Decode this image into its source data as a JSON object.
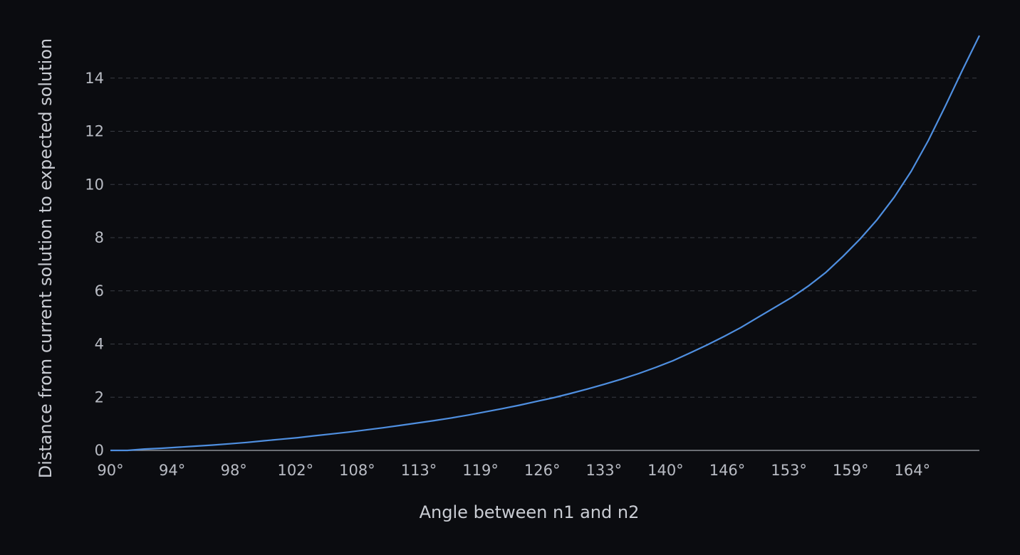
{
  "chart_data": {
    "type": "line",
    "title": "",
    "xlabel": "Angle between n1 and n2",
    "ylabel": "Distance from current solution to expected solution",
    "x_tick_labels": [
      "90°",
      "94°",
      "98°",
      "102°",
      "108°",
      "113°",
      "119°",
      "126°",
      "133°",
      "140°",
      "146°",
      "153°",
      "159°",
      "164°"
    ],
    "y_ticks": [
      0,
      2,
      4,
      6,
      8,
      10,
      12,
      14
    ],
    "ylim": [
      0,
      15.6
    ],
    "grid": true,
    "line_color": "#4f8fe0",
    "series": [
      {
        "points": [
          [
            0,
            0.0
          ],
          [
            1,
            0.0
          ],
          [
            2,
            0.05
          ],
          [
            3,
            0.08
          ],
          [
            4,
            0.12
          ],
          [
            5,
            0.16
          ],
          [
            6,
            0.2
          ],
          [
            7,
            0.25
          ],
          [
            8,
            0.3
          ],
          [
            9,
            0.36
          ],
          [
            10,
            0.42
          ],
          [
            11,
            0.48
          ],
          [
            12,
            0.55
          ],
          [
            13,
            0.62
          ],
          [
            14,
            0.69
          ],
          [
            15,
            0.77
          ],
          [
            16,
            0.85
          ],
          [
            17,
            0.94
          ],
          [
            18,
            1.03
          ],
          [
            19,
            1.12
          ],
          [
            20,
            1.22
          ],
          [
            21,
            1.33
          ],
          [
            22,
            1.45
          ],
          [
            23,
            1.57
          ],
          [
            24,
            1.7
          ],
          [
            25,
            1.84
          ],
          [
            26,
            1.98
          ],
          [
            27,
            2.14
          ],
          [
            28,
            2.31
          ],
          [
            29,
            2.49
          ],
          [
            30,
            2.68
          ],
          [
            31,
            2.89
          ],
          [
            32,
            3.12
          ],
          [
            33,
            3.37
          ],
          [
            34,
            3.66
          ],
          [
            35,
            3.96
          ],
          [
            36,
            4.28
          ],
          [
            37,
            4.62
          ],
          [
            38,
            5.0
          ],
          [
            39,
            5.38
          ],
          [
            40,
            5.76
          ],
          [
            41,
            6.2
          ],
          [
            42,
            6.7
          ],
          [
            43,
            7.3
          ],
          [
            44,
            7.95
          ],
          [
            45,
            8.68
          ],
          [
            46,
            9.52
          ],
          [
            47,
            10.5
          ],
          [
            48,
            11.65
          ],
          [
            49,
            12.95
          ],
          [
            50,
            14.3
          ],
          [
            51,
            15.6
          ]
        ]
      }
    ]
  }
}
